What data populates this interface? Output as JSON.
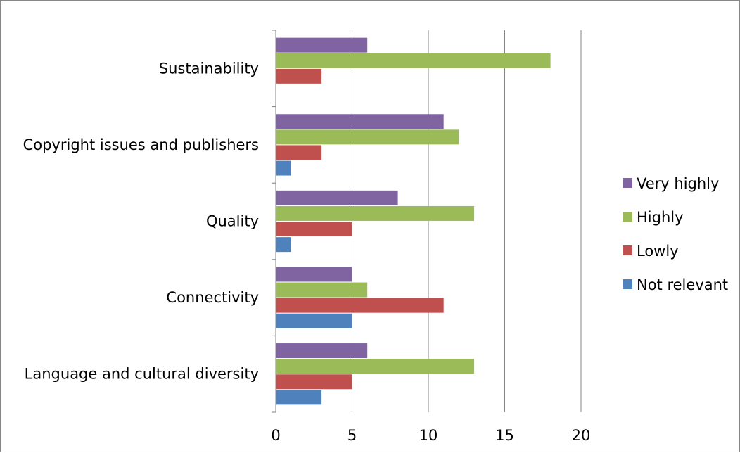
{
  "chart_data": {
    "type": "bar",
    "orientation": "horizontal",
    "categories": [
      "Language and cultural diversity",
      "Connectivity",
      "Quality",
      "Copyright issues and publishers",
      "Sustainability"
    ],
    "series": [
      {
        "name": "Not relevant",
        "color": "#4f81bd",
        "values": [
          3,
          5,
          1,
          1,
          0
        ]
      },
      {
        "name": "Lowly",
        "color": "#c0504d",
        "values": [
          5,
          11,
          5,
          3,
          3
        ]
      },
      {
        "name": "Highly",
        "color": "#9bbb59",
        "values": [
          13,
          6,
          13,
          12,
          18
        ]
      },
      {
        "name": "Very highly",
        "color": "#8064a2",
        "values": [
          6,
          5,
          8,
          11,
          6
        ]
      }
    ],
    "xlim": [
      0,
      20
    ],
    "xticks": [
      0,
      5,
      10,
      15,
      20
    ],
    "grid": "vertical",
    "legend_position": "right",
    "legend_order": [
      "Very highly",
      "Highly",
      "Lowly",
      "Not relevant"
    ],
    "title": "",
    "xlabel": "",
    "ylabel": ""
  }
}
